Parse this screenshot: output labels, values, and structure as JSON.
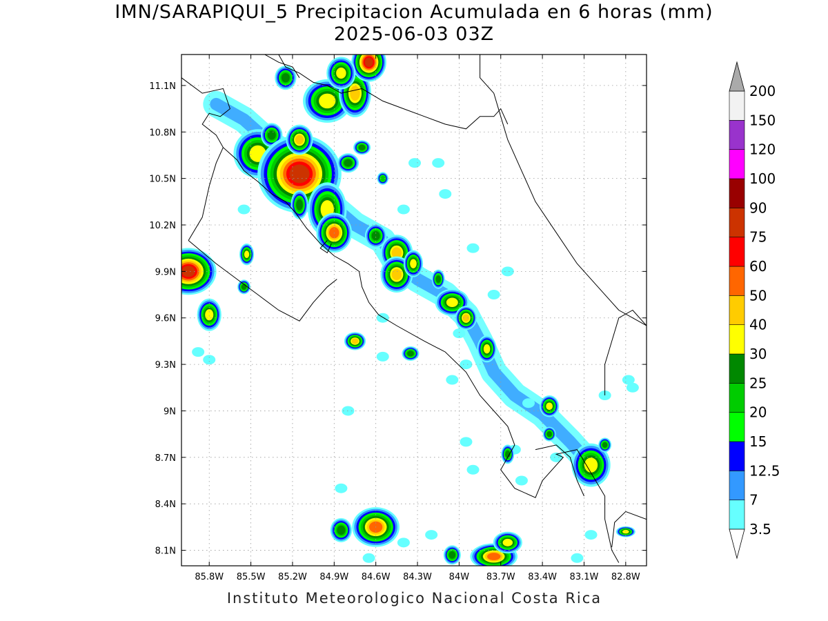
{
  "title": "IMN/SARAPIQUI_5 Precipitacion Acumulada en 6 horas (mm)",
  "subtitle": "2025-06-03 03Z",
  "footer": "Instituto Meteorologico Nacional Costa Rica",
  "map": {
    "lon_range": [
      -86.0,
      -82.65
    ],
    "lat_range": [
      8.0,
      11.3
    ],
    "lon_ticks": [
      {
        "value": -85.8,
        "label": "85.8W"
      },
      {
        "value": -85.5,
        "label": "85.5W"
      },
      {
        "value": -85.2,
        "label": "85.2W"
      },
      {
        "value": -84.9,
        "label": "84.9W"
      },
      {
        "value": -84.6,
        "label": "84.6W"
      },
      {
        "value": -84.3,
        "label": "84.3W"
      },
      {
        "value": -84.0,
        "label": "84W"
      },
      {
        "value": -83.7,
        "label": "83.7W"
      },
      {
        "value": -83.4,
        "label": "83.4W"
      },
      {
        "value": -83.1,
        "label": "83.1W"
      },
      {
        "value": -82.8,
        "label": "82.8W"
      }
    ],
    "lat_ticks": [
      {
        "value": 8.1,
        "label": "8.1N"
      },
      {
        "value": 8.4,
        "label": "8.4N"
      },
      {
        "value": 8.7,
        "label": "8.7N"
      },
      {
        "value": 9.0,
        "label": "9N"
      },
      {
        "value": 9.3,
        "label": "9.3N"
      },
      {
        "value": 9.6,
        "label": "9.6N"
      },
      {
        "value": 9.9,
        "label": "9.9N"
      },
      {
        "value": 10.2,
        "label": "10.2N"
      },
      {
        "value": 10.5,
        "label": "10.5N"
      },
      {
        "value": 10.8,
        "label": "10.8N"
      },
      {
        "value": 11.1,
        "label": "11.1N"
      }
    ],
    "grid": true
  },
  "colorbar": {
    "levels": [
      {
        "label": "3.5",
        "color": "#66ffff"
      },
      {
        "label": "7",
        "color": "#3399ff"
      },
      {
        "label": "12.5",
        "color": "#0000ff"
      },
      {
        "label": "15",
        "color": "#00ff00"
      },
      {
        "label": "20",
        "color": "#00cc00"
      },
      {
        "label": "25",
        "color": "#008800"
      },
      {
        "label": "30",
        "color": "#ffff00"
      },
      {
        "label": "40",
        "color": "#ffcc00"
      },
      {
        "label": "50",
        "color": "#ff6600"
      },
      {
        "label": "60",
        "color": "#ff0000"
      },
      {
        "label": "75",
        "color": "#cc3300"
      },
      {
        "label": "90",
        "color": "#990000"
      },
      {
        "label": "100",
        "color": "#ff00ff"
      },
      {
        "label": "120",
        "color": "#9933cc"
      },
      {
        "label": "150",
        "color": "#f2f2f2"
      },
      {
        "label": "200",
        "color": "#aaaaaa"
      }
    ]
  },
  "precip_cells": [
    {
      "lon": -85.95,
      "lat": 9.9,
      "rx": 0.08,
      "ry": 0.06,
      "max": 75
    },
    {
      "lon": -85.8,
      "lat": 9.62,
      "rx": 0.05,
      "ry": 0.06,
      "max": 30
    },
    {
      "lon": -85.55,
      "lat": 9.8,
      "rx": 0.03,
      "ry": 0.03,
      "max": 25
    },
    {
      "lon": -85.53,
      "lat": 10.01,
      "rx": 0.03,
      "ry": 0.04,
      "max": 30
    },
    {
      "lon": -85.45,
      "lat": 10.66,
      "rx": 0.1,
      "ry": 0.09,
      "max": 30
    },
    {
      "lon": -85.35,
      "lat": 10.78,
      "rx": 0.05,
      "ry": 0.05,
      "max": 25
    },
    {
      "lon": -85.15,
      "lat": 10.53,
      "rx": 0.12,
      "ry": 0.1,
      "max": 75
    },
    {
      "lon": -85.15,
      "lat": 10.75,
      "rx": 0.05,
      "ry": 0.05,
      "max": 40
    },
    {
      "lon": -85.15,
      "lat": 10.33,
      "rx": 0.04,
      "ry": 0.06,
      "max": 25
    },
    {
      "lon": -84.95,
      "lat": 10.3,
      "rx": 0.08,
      "ry": 0.1,
      "max": 30
    },
    {
      "lon": -84.9,
      "lat": 10.15,
      "rx": 0.06,
      "ry": 0.06,
      "max": 50
    },
    {
      "lon": -84.8,
      "lat": 10.6,
      "rx": 0.05,
      "ry": 0.04,
      "max": 25
    },
    {
      "lon": -84.95,
      "lat": 11.0,
      "rx": 0.1,
      "ry": 0.08,
      "max": 30
    },
    {
      "lon": -84.75,
      "lat": 11.05,
      "rx": 0.06,
      "ry": 0.08,
      "max": 40
    },
    {
      "lon": -84.65,
      "lat": 11.25,
      "rx": 0.05,
      "ry": 0.05,
      "max": 75
    },
    {
      "lon": -84.85,
      "lat": 11.18,
      "rx": 0.06,
      "ry": 0.06,
      "max": 30
    },
    {
      "lon": -85.25,
      "lat": 11.15,
      "rx": 0.05,
      "ry": 0.05,
      "max": 25
    },
    {
      "lon": -84.7,
      "lat": 10.7,
      "rx": 0.04,
      "ry": 0.03,
      "max": 25
    },
    {
      "lon": -84.55,
      "lat": 10.5,
      "rx": 0.03,
      "ry": 0.03,
      "max": 20
    },
    {
      "lon": -84.6,
      "lat": 10.13,
      "rx": 0.05,
      "ry": 0.05,
      "max": 25
    },
    {
      "lon": -84.45,
      "lat": 10.02,
      "rx": 0.06,
      "ry": 0.06,
      "max": 40
    },
    {
      "lon": -84.45,
      "lat": 9.88,
      "rx": 0.06,
      "ry": 0.06,
      "max": 40
    },
    {
      "lon": -84.33,
      "lat": 9.95,
      "rx": 0.04,
      "ry": 0.05,
      "max": 30
    },
    {
      "lon": -84.15,
      "lat": 9.85,
      "rx": 0.03,
      "ry": 0.04,
      "max": 25
    },
    {
      "lon": -84.05,
      "lat": 9.7,
      "rx": 0.07,
      "ry": 0.05,
      "max": 30
    },
    {
      "lon": -83.95,
      "lat": 9.6,
      "rx": 0.04,
      "ry": 0.04,
      "max": 40
    },
    {
      "lon": -83.8,
      "lat": 9.4,
      "rx": 0.04,
      "ry": 0.05,
      "max": 30
    },
    {
      "lon": -84.75,
      "lat": 9.45,
      "rx": 0.04,
      "ry": 0.03,
      "max": 40
    },
    {
      "lon": -84.35,
      "lat": 9.37,
      "rx": 0.04,
      "ry": 0.03,
      "max": 25
    },
    {
      "lon": -83.35,
      "lat": 9.03,
      "rx": 0.04,
      "ry": 0.04,
      "max": 30
    },
    {
      "lon": -83.35,
      "lat": 8.85,
      "rx": 0.03,
      "ry": 0.03,
      "max": 25
    },
    {
      "lon": -83.65,
      "lat": 8.72,
      "rx": 0.03,
      "ry": 0.04,
      "max": 25
    },
    {
      "lon": -83.05,
      "lat": 8.65,
      "rx": 0.08,
      "ry": 0.08,
      "max": 30
    },
    {
      "lon": -84.6,
      "lat": 8.25,
      "rx": 0.08,
      "ry": 0.06,
      "max": 50
    },
    {
      "lon": -84.85,
      "lat": 8.23,
      "rx": 0.05,
      "ry": 0.05,
      "max": 25
    },
    {
      "lon": -83.75,
      "lat": 8.06,
      "rx": 0.08,
      "ry": 0.04,
      "max": 50
    },
    {
      "lon": -83.65,
      "lat": 8.15,
      "rx": 0.06,
      "ry": 0.04,
      "max": 30
    },
    {
      "lon": -84.05,
      "lat": 8.07,
      "rx": 0.04,
      "ry": 0.04,
      "max": 25
    },
    {
      "lon": -82.8,
      "lat": 8.22,
      "rx": 0.04,
      "ry": 0.02,
      "max": 30
    },
    {
      "lon": -82.95,
      "lat": 8.78,
      "rx": 0.03,
      "ry": 0.03,
      "max": 25
    }
  ],
  "light_rain_band": [
    [
      -85.75,
      10.98
    ],
    [
      -85.55,
      10.88
    ],
    [
      -85.35,
      10.72
    ],
    [
      -85.15,
      10.6
    ],
    [
      -84.95,
      10.35
    ],
    [
      -84.75,
      10.2
    ],
    [
      -84.55,
      10.1
    ],
    [
      -84.45,
      9.95
    ],
    [
      -84.3,
      9.85
    ],
    [
      -84.1,
      9.75
    ],
    [
      -83.95,
      9.62
    ],
    [
      -83.85,
      9.45
    ],
    [
      -83.75,
      9.25
    ],
    [
      -83.6,
      9.1
    ],
    [
      -83.4,
      8.98
    ],
    [
      -83.2,
      8.8
    ],
    [
      -83.05,
      8.65
    ]
  ],
  "light_rain_spots": [
    [
      -85.88,
      9.38
    ],
    [
      -85.8,
      9.33
    ],
    [
      -85.55,
      10.3
    ],
    [
      -85.15,
      10.8
    ],
    [
      -84.8,
      9.0
    ],
    [
      -84.55,
      9.6
    ],
    [
      -84.55,
      9.35
    ],
    [
      -84.32,
      10.6
    ],
    [
      -84.15,
      10.6
    ],
    [
      -84.1,
      10.4
    ],
    [
      -83.9,
      10.05
    ],
    [
      -83.75,
      9.75
    ],
    [
      -83.65,
      9.9
    ],
    [
      -83.5,
      9.05
    ],
    [
      -83.3,
      8.7
    ],
    [
      -82.95,
      9.1
    ],
    [
      -82.75,
      9.15
    ],
    [
      -82.78,
      9.2
    ],
    [
      -83.05,
      8.2
    ],
    [
      -83.15,
      8.05
    ],
    [
      -84.2,
      8.2
    ],
    [
      -84.85,
      8.5
    ],
    [
      -84.4,
      8.15
    ],
    [
      -84.65,
      8.05
    ],
    [
      -83.95,
      8.8
    ],
    [
      -83.95,
      9.3
    ],
    [
      -83.9,
      8.62
    ],
    [
      -83.55,
      8.55
    ],
    [
      -84.0,
      9.5
    ],
    [
      -84.4,
      10.3
    ],
    [
      -83.6,
      8.75
    ],
    [
      -84.05,
      9.2
    ]
  ],
  "coastlines": [
    [
      [
        -86.0,
        11.15
      ],
      [
        -85.85,
        11.05
      ],
      [
        -85.7,
        11.08
      ],
      [
        -85.65,
        10.95
      ],
      [
        -85.72,
        10.9
      ],
      [
        -85.8,
        10.92
      ],
      [
        -85.85,
        10.85
      ],
      [
        -85.75,
        10.78
      ],
      [
        -85.7,
        10.7
      ],
      [
        -85.6,
        10.62
      ],
      [
        -85.55,
        10.55
      ],
      [
        -85.45,
        10.48
      ],
      [
        -85.35,
        10.4
      ],
      [
        -85.25,
        10.35
      ],
      [
        -85.18,
        10.28
      ],
      [
        -85.1,
        10.18
      ],
      [
        -85.0,
        10.08
      ],
      [
        -84.9,
        10.0
      ],
      [
        -84.8,
        9.95
      ],
      [
        -84.72,
        9.9
      ],
      [
        -84.7,
        9.8
      ],
      [
        -84.65,
        9.7
      ],
      [
        -84.58,
        9.62
      ],
      [
        -84.45,
        9.55
      ],
      [
        -84.25,
        9.45
      ],
      [
        -84.1,
        9.38
      ],
      [
        -83.95,
        9.25
      ],
      [
        -83.85,
        9.1
      ],
      [
        -83.75,
        9.0
      ],
      [
        -83.65,
        8.9
      ],
      [
        -83.6,
        8.78
      ],
      [
        -83.65,
        8.7
      ],
      [
        -83.7,
        8.62
      ],
      [
        -83.6,
        8.5
      ],
      [
        -83.45,
        8.44
      ],
      [
        -83.4,
        8.55
      ],
      [
        -83.25,
        8.7
      ],
      [
        -83.3,
        8.72
      ],
      [
        -83.15,
        8.75
      ],
      [
        -83.05,
        8.6
      ],
      [
        -82.95,
        8.45
      ],
      [
        -82.95,
        8.3
      ],
      [
        -82.9,
        8.1
      ],
      [
        -82.85,
        8.02
      ]
    ],
    [
      [
        -85.95,
        10.1
      ],
      [
        -85.85,
        10.25
      ],
      [
        -85.8,
        10.45
      ],
      [
        -85.75,
        10.6
      ],
      [
        -85.7,
        10.7
      ]
    ],
    [
      [
        -85.95,
        10.1
      ],
      [
        -85.75,
        9.95
      ],
      [
        -85.6,
        9.85
      ],
      [
        -85.45,
        9.75
      ],
      [
        -85.3,
        9.65
      ],
      [
        -85.15,
        9.58
      ],
      [
        -85.05,
        9.7
      ],
      [
        -84.95,
        9.8
      ],
      [
        -84.88,
        9.85
      ]
    ],
    [
      [
        -85.3,
        11.3
      ],
      [
        -85.25,
        11.22
      ],
      [
        -85.15,
        11.18
      ],
      [
        -85.05,
        11.12
      ],
      [
        -84.95,
        11.1
      ],
      [
        -84.85,
        11.05
      ],
      [
        -84.7,
        11.08
      ],
      [
        -84.55,
        11.0
      ],
      [
        -84.4,
        10.95
      ],
      [
        -84.25,
        10.9
      ],
      [
        -84.1,
        10.85
      ],
      [
        -83.95,
        10.82
      ],
      [
        -83.85,
        10.9
      ],
      [
        -83.75,
        10.9
      ],
      [
        -83.7,
        10.95
      ],
      [
        -83.65,
        10.85
      ]
    ],
    [
      [
        -83.85,
        11.3
      ],
      [
        -83.85,
        11.15
      ],
      [
        -83.75,
        11.05
      ],
      [
        -83.7,
        10.9
      ],
      [
        -83.65,
        10.75
      ],
      [
        -83.55,
        10.55
      ],
      [
        -83.45,
        10.35
      ],
      [
        -83.3,
        10.15
      ],
      [
        -83.15,
        9.95
      ],
      [
        -83.0,
        9.8
      ],
      [
        -82.85,
        9.65
      ],
      [
        -82.75,
        9.6
      ],
      [
        -82.65,
        9.55
      ]
    ],
    [
      [
        -82.65,
        9.55
      ],
      [
        -82.75,
        9.65
      ],
      [
        -82.85,
        9.6
      ],
      [
        -82.9,
        9.45
      ],
      [
        -82.95,
        9.3
      ],
      [
        -82.95,
        9.1
      ]
    ],
    [
      [
        -85.4,
        11.3
      ],
      [
        -85.3,
        11.25
      ],
      [
        -85.2,
        11.22
      ],
      [
        -85.15,
        11.15
      ]
    ],
    [
      [
        -84.95,
        10.1
      ],
      [
        -85.0,
        10.05
      ],
      [
        -84.95,
        10.02
      ],
      [
        -84.92,
        10.08
      ]
    ],
    [
      [
        -83.45,
        8.75
      ],
      [
        -83.3,
        8.78
      ],
      [
        -83.2,
        8.7
      ],
      [
        -83.15,
        8.55
      ],
      [
        -83.1,
        8.45
      ]
    ],
    [
      [
        -82.65,
        8.3
      ],
      [
        -82.8,
        8.35
      ],
      [
        -82.88,
        8.28
      ],
      [
        -82.9,
        8.12
      ]
    ]
  ]
}
